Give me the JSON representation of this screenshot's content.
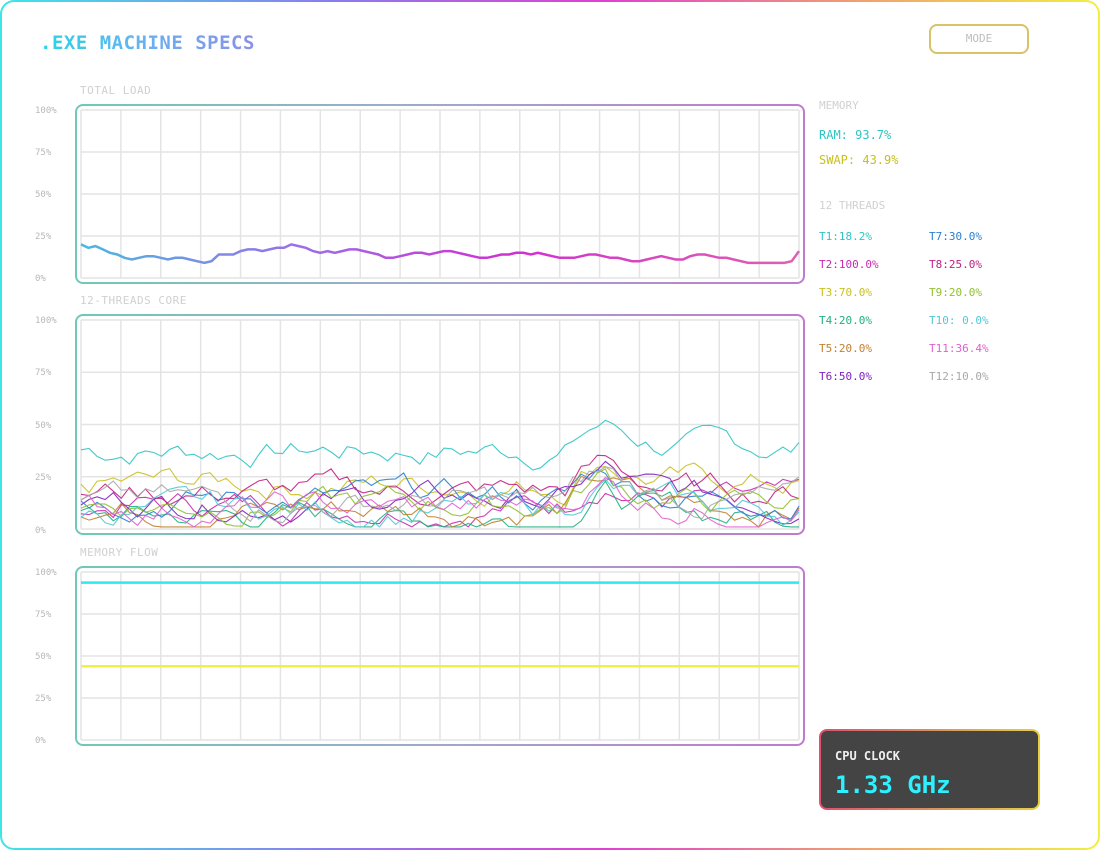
{
  "app": {
    "title": ".EXE MACHINE SPECS",
    "mode_button": "MODE"
  },
  "charts": {
    "total_load": {
      "label": "TOTAL LOAD",
      "yticks": [
        "100%",
        "75%",
        "50%",
        "25%",
        "0%"
      ]
    },
    "threads_core": {
      "label": "12-THREADS CORE",
      "yticks": [
        "100%",
        "75%",
        "50%",
        "25%",
        "0%"
      ]
    },
    "memory_flow": {
      "label": "MEMORY FLOW",
      "yticks": [
        "100%",
        "75%",
        "50%",
        "25%",
        "0%"
      ]
    }
  },
  "memory": {
    "heading": "MEMORY",
    "ram": "RAM:  93.7%",
    "swap": "SWAP: 43.9%"
  },
  "threads": {
    "heading": "12 THREADS",
    "items": [
      {
        "label": "T1:18.2%",
        "color": "#2fc4c4"
      },
      {
        "label": "T7:30.0%",
        "color": "#2a7fd0"
      },
      {
        "label": "T2:100.0%",
        "color": "#c82ab0"
      },
      {
        "label": "T8:25.0%",
        "color": "#c02080"
      },
      {
        "label": "T3:70.0%",
        "color": "#c8c020"
      },
      {
        "label": "T9:20.0%",
        "color": "#90c030"
      },
      {
        "label": "T4:20.0%",
        "color": "#20b080"
      },
      {
        "label": "T10: 0.0%",
        "color": "#50c8d8"
      },
      {
        "label": "T5:20.0%",
        "color": "#c08030"
      },
      {
        "label": "T11:36.4%",
        "color": "#e060d0"
      },
      {
        "label": "T6:50.0%",
        "color": "#8020c0"
      },
      {
        "label": "T12:10.0%",
        "color": "#a8a8a8"
      }
    ]
  },
  "cpu": {
    "label": "CPU CLOCK",
    "value": "1.33 GHz"
  },
  "chart_data": [
    {
      "type": "line",
      "title": "TOTAL LOAD",
      "ylim": [
        0,
        100
      ],
      "yticks": [
        "0%",
        "25%",
        "50%",
        "75%",
        "100%"
      ],
      "grid": true,
      "series": [
        {
          "values": [
            20,
            18,
            19,
            17,
            15,
            14,
            12,
            11,
            12,
            13,
            13,
            12,
            11,
            12,
            12,
            11,
            10,
            9,
            10,
            14,
            14,
            14,
            16,
            17,
            17,
            16,
            17,
            18,
            18,
            20,
            19,
            18,
            16,
            15,
            16,
            15,
            16,
            17,
            17,
            16,
            15,
            14,
            12,
            12,
            13,
            14,
            15,
            15,
            14,
            15,
            16,
            16,
            15,
            14,
            13,
            12,
            12,
            13,
            14,
            14,
            15,
            15,
            14,
            15,
            14,
            13,
            12,
            12,
            12,
            13,
            14,
            14,
            13,
            12,
            12,
            11,
            10,
            10,
            11,
            12,
            13,
            12,
            11,
            11,
            13,
            14,
            14,
            13,
            12,
            12,
            11,
            10,
            9,
            9,
            9,
            9,
            9,
            9,
            10,
            16
          ]
        }
      ]
    },
    {
      "type": "line",
      "title": "12-THREADS CORE",
      "ylim": [
        0,
        100
      ],
      "yticks": [
        "0%",
        "25%",
        "50%",
        "75%",
        "100%"
      ],
      "grid": true,
      "series": [
        {
          "name": "T1",
          "color": "#2fc4c4"
        },
        {
          "name": "T2",
          "color": "#c82ab0"
        },
        {
          "name": "T3",
          "color": "#c8c020"
        },
        {
          "name": "T4",
          "color": "#20b080"
        },
        {
          "name": "T5",
          "color": "#c08030"
        },
        {
          "name": "T6",
          "color": "#8020c0"
        },
        {
          "name": "T7",
          "color": "#2a7fd0"
        },
        {
          "name": "T8",
          "color": "#c02080"
        },
        {
          "name": "T9",
          "color": "#90c030"
        },
        {
          "name": "T10",
          "color": "#50c8d8"
        },
        {
          "name": "T11",
          "color": "#e060d0"
        },
        {
          "name": "T12",
          "color": "#a8a8a8"
        }
      ]
    },
    {
      "type": "line",
      "title": "MEMORY FLOW",
      "ylim": [
        0,
        100
      ],
      "yticks": [
        "0%",
        "25%",
        "50%",
        "75%",
        "100%"
      ],
      "grid": true,
      "series": [
        {
          "name": "RAM",
          "color": "#2ee8f0",
          "values": [
            93.7,
            93.7
          ]
        },
        {
          "name": "SWAP",
          "color": "#f0f040",
          "values": [
            43.9,
            43.9
          ]
        }
      ]
    }
  ]
}
